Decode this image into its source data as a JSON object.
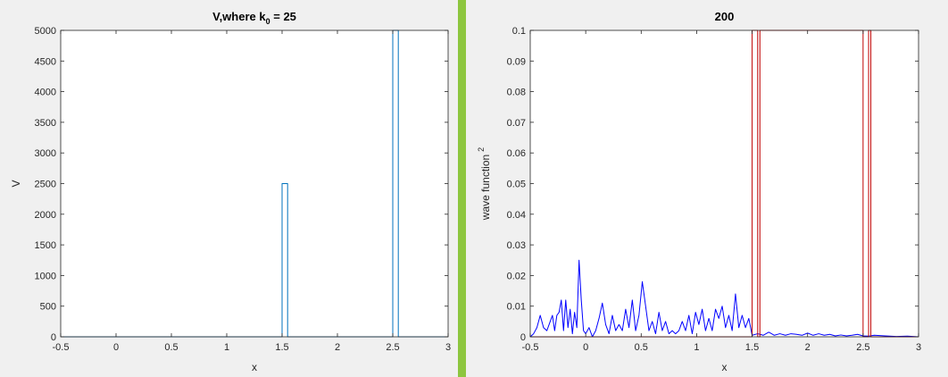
{
  "figure": {
    "background": "#f0f0f0",
    "axes_background": "#ffffff",
    "divider_color": "#8dc63f",
    "axis_color": "#262626"
  },
  "chart_data": [
    {
      "type": "line",
      "title": "V,where k",
      "title_subscript": "0",
      "title_suffix": " = 25",
      "xlabel": "x",
      "ylabel": "V",
      "xlim": [
        -0.5,
        3
      ],
      "ylim": [
        0,
        5000
      ],
      "xticks": [
        -0.5,
        0,
        0.5,
        1,
        1.5,
        2,
        2.5,
        3
      ],
      "xtick_labels": [
        "-0.5",
        "0",
        "0.5",
        "1",
        "1.5",
        "2",
        "2.5",
        "3"
      ],
      "yticks": [
        0,
        500,
        1000,
        1500,
        2000,
        2500,
        3000,
        3500,
        4000,
        4500,
        5000
      ],
      "ytick_labels": [
        "0",
        "500",
        "1000",
        "1500",
        "2000",
        "2500",
        "3000",
        "3500",
        "4000",
        "4500",
        "5000"
      ],
      "grid": false,
      "series": [
        {
          "color": "#0072bd",
          "x": [
            -0.5,
            1.5,
            1.5,
            1.55,
            1.55,
            2.5,
            2.5,
            2.55,
            2.55,
            3
          ],
          "y": [
            0,
            0,
            2500,
            2500,
            0,
            0,
            5000,
            5000,
            0,
            0
          ]
        }
      ]
    },
    {
      "type": "line",
      "title": "200",
      "xlabel": "x",
      "ylabel": "wave function",
      "ylabel_superscript": "2",
      "xlim": [
        -0.5,
        3
      ],
      "ylim": [
        0,
        0.1
      ],
      "xticks": [
        -0.5,
        0,
        0.5,
        1,
        1.5,
        2,
        2.5,
        3
      ],
      "xtick_labels": [
        "-0.5",
        "0",
        "0.5",
        "1",
        "1.5",
        "2",
        "2.5",
        "3"
      ],
      "yticks": [
        0,
        0.01,
        0.02,
        0.03,
        0.04,
        0.05,
        0.06,
        0.07,
        0.08,
        0.09,
        0.1
      ],
      "ytick_labels": [
        "0",
        "0.01",
        "0.02",
        "0.03",
        "0.04",
        "0.05",
        "0.06",
        "0.07",
        "0.08",
        "0.09",
        "0.1"
      ],
      "grid": false,
      "series": [
        {
          "color": "#0000ff",
          "x": [
            -0.5,
            -0.47,
            -0.44,
            -0.41,
            -0.38,
            -0.35,
            -0.32,
            -0.3,
            -0.28,
            -0.26,
            -0.24,
            -0.22,
            -0.2,
            -0.18,
            -0.16,
            -0.14,
            -0.12,
            -0.1,
            -0.08,
            -0.06,
            -0.04,
            -0.02,
            0.0,
            0.03,
            0.06,
            0.09,
            0.12,
            0.15,
            0.18,
            0.21,
            0.24,
            0.27,
            0.3,
            0.33,
            0.36,
            0.39,
            0.42,
            0.45,
            0.48,
            0.51,
            0.54,
            0.57,
            0.6,
            0.63,
            0.66,
            0.69,
            0.72,
            0.75,
            0.78,
            0.81,
            0.84,
            0.87,
            0.9,
            0.93,
            0.96,
            0.99,
            1.02,
            1.05,
            1.08,
            1.11,
            1.14,
            1.17,
            1.2,
            1.23,
            1.26,
            1.29,
            1.32,
            1.35,
            1.38,
            1.41,
            1.44,
            1.47,
            1.5,
            1.55,
            1.6,
            1.65,
            1.7,
            1.75,
            1.8,
            1.85,
            1.9,
            1.95,
            2.0,
            2.05,
            2.1,
            2.15,
            2.2,
            2.25,
            2.3,
            2.35,
            2.4,
            2.45,
            2.5,
            2.55,
            2.6,
            2.7,
            2.8,
            2.9,
            3.0
          ],
          "y": [
            0.0,
            0.001,
            0.003,
            0.007,
            0.003,
            0.002,
            0.005,
            0.007,
            0.002,
            0.007,
            0.008,
            0.012,
            0.002,
            0.012,
            0.003,
            0.009,
            0.001,
            0.008,
            0.003,
            0.025,
            0.012,
            0.002,
            0.001,
            0.003,
            0.0,
            0.002,
            0.006,
            0.011,
            0.004,
            0.001,
            0.007,
            0.002,
            0.004,
            0.002,
            0.009,
            0.003,
            0.012,
            0.002,
            0.007,
            0.018,
            0.01,
            0.002,
            0.005,
            0.001,
            0.008,
            0.002,
            0.005,
            0.001,
            0.002,
            0.001,
            0.002,
            0.005,
            0.002,
            0.007,
            0.001,
            0.008,
            0.004,
            0.009,
            0.002,
            0.006,
            0.002,
            0.009,
            0.006,
            0.01,
            0.003,
            0.007,
            0.002,
            0.014,
            0.003,
            0.007,
            0.003,
            0.006,
            0.0005,
            0.001,
            0.0005,
            0.0015,
            0.0005,
            0.001,
            0.0005,
            0.001,
            0.0008,
            0.0005,
            0.0012,
            0.0005,
            0.001,
            0.0005,
            0.0008,
            0.0003,
            0.0006,
            0.0003,
            0.0005,
            0.0008,
            0.0003,
            0.0002,
            0.0005,
            0.0003,
            0.0001,
            0.0002,
            0.0
          ]
        },
        {
          "color": "#c00000",
          "x": [
            -0.5,
            1.5,
            1.5,
            1.55,
            1.55,
            1.57,
            1.57,
            2.5,
            2.5,
            2.55,
            2.55,
            2.57,
            2.57,
            3
          ],
          "y": [
            0,
            0,
            0.1,
            0.1,
            0,
            0,
            0.1,
            0.1,
            0,
            0,
            0.1,
            0.1,
            0,
            0
          ]
        }
      ]
    }
  ]
}
